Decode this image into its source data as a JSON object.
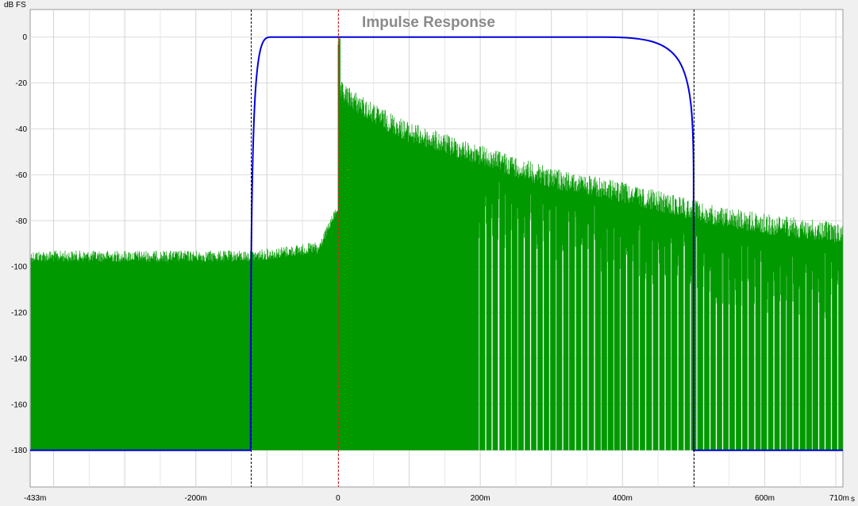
{
  "chart_data": {
    "type": "line",
    "title": "Impulse Response",
    "ylabel": "dB FS",
    "xlabel": "",
    "x_unit": "s",
    "xlim": [
      -0.433,
      0.71
    ],
    "ylim": [
      -196,
      12
    ],
    "grid": true,
    "x_tick_labels": [
      {
        "value": -0.433,
        "label": "-433m"
      },
      {
        "value": -0.2,
        "label": "-200m"
      },
      {
        "value": 0,
        "label": "0"
      },
      {
        "value": 0.2,
        "label": "200m"
      },
      {
        "value": 0.4,
        "label": "400m"
      },
      {
        "value": 0.6,
        "label": "600m"
      },
      {
        "value": 0.71,
        "label": "710m"
      }
    ],
    "y_ticks": [
      0,
      -20,
      -40,
      -60,
      -80,
      -100,
      -120,
      -140,
      -160,
      -180
    ],
    "markers": [
      {
        "x": -0.123,
        "style": "dashed",
        "color": "#000000"
      },
      {
        "x": 0,
        "style": "dashed",
        "color": "#cc2222"
      },
      {
        "x": 0.5,
        "style": "dashed",
        "color": "#000000"
      }
    ],
    "series": [
      {
        "color": "#009900",
        "envelope": {
          "pre_noise_floor_db": -95,
          "peak_x": 0,
          "peak_db": 0,
          "decay_points": [
            [
              0.003,
              -22
            ],
            [
              0.05,
              -32
            ],
            [
              0.1,
              -40
            ],
            [
              0.2,
              -50
            ],
            [
              0.3,
              -60
            ],
            [
              0.4,
              -66
            ],
            [
              0.5,
              -74
            ],
            [
              0.6,
              -80
            ],
            [
              0.71,
              -84
            ]
          ],
          "floor_db": -180
        }
      },
      {
        "color": "#0000dd",
        "window": {
          "left_edge": -0.123,
          "left_flat": -0.095,
          "right_flat": 0.375,
          "right_edge": 0.5,
          "top_db": 0,
          "bottom_db": -180
        }
      }
    ]
  }
}
